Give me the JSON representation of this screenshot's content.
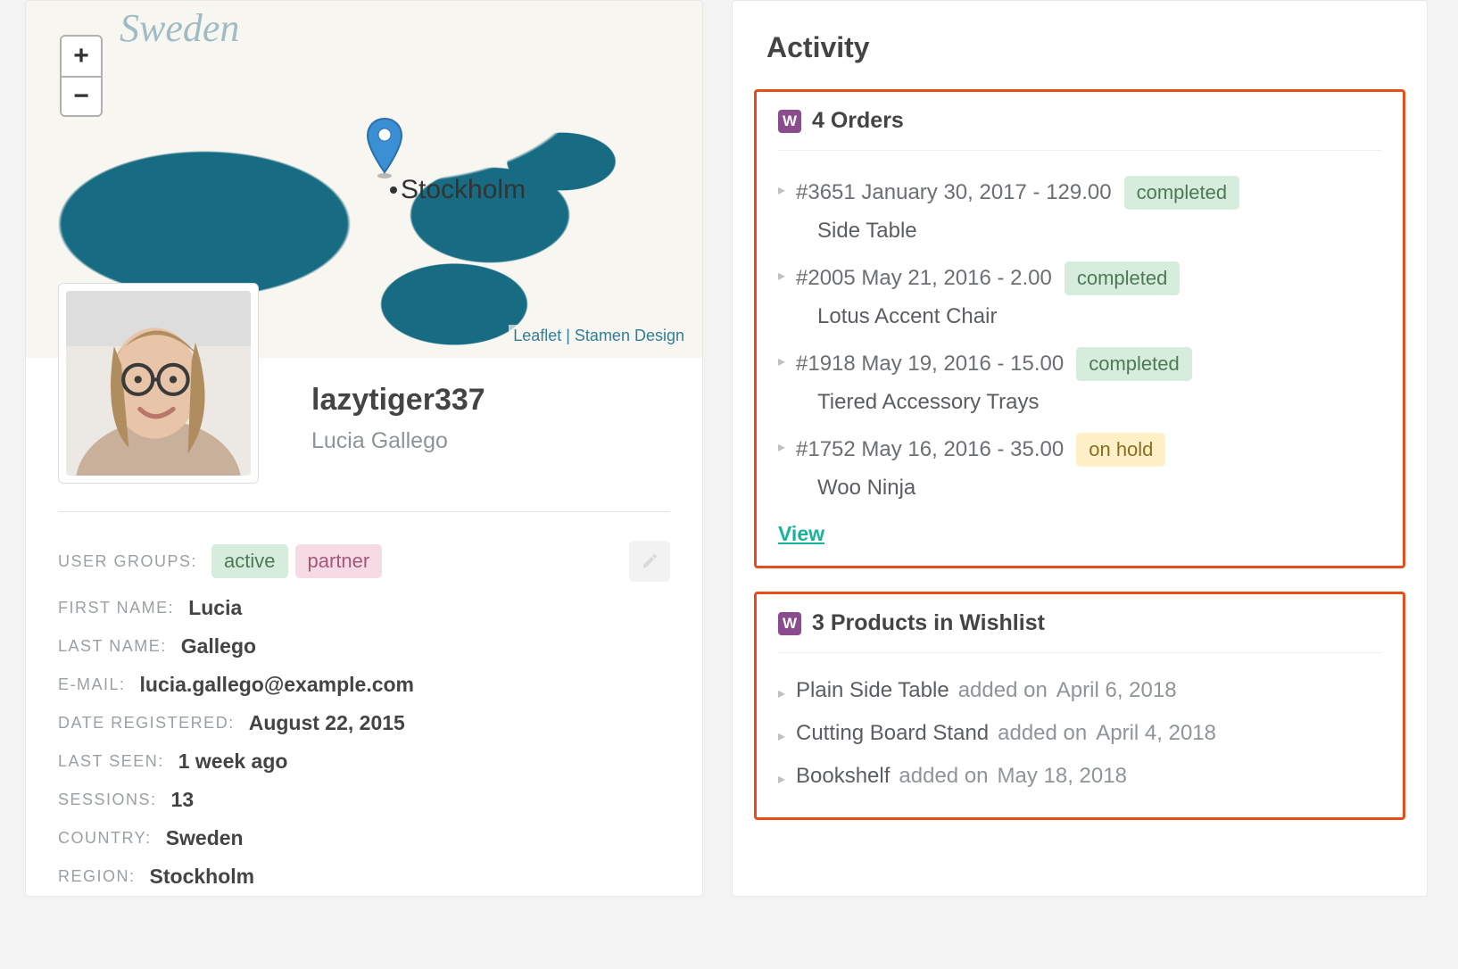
{
  "colors": {
    "background": "#f3f3f3",
    "card_bg": "#ffffff",
    "border": "#e8e8e8",
    "highlight_border": "#e84c1a",
    "teal": "#18b39b",
    "badge_green_bg": "#d6ecdc",
    "badge_green_text": "#4d7a55",
    "badge_pink_bg": "#f6dbe4",
    "badge_pink_text": "#a3587a",
    "badge_yellow_bg": "#fff0c8",
    "badge_yellow_text": "#8a6d1f",
    "w_icon_bg": "#8a4b8f",
    "map_water": "#176b82",
    "map_land": "#f8f6f0",
    "label_muted": "#9aa0a4",
    "text_primary": "#444444",
    "text_secondary": "#6b6f73"
  },
  "map": {
    "country_label": "Sweden",
    "city_label": "Stockholm",
    "attribution_leaflet": "Leaflet",
    "attribution_sep": " | ",
    "attribution_stamen": "Stamen Design",
    "zoom_in": "+",
    "zoom_out": "−"
  },
  "profile": {
    "username": "lazytiger337",
    "full_name": "Lucia Gallego",
    "labels": {
      "user_groups": "USER GROUPS:",
      "first_name": "FIRST NAME:",
      "last_name": "LAST NAME:",
      "email": "E-MAIL:",
      "date_registered": "DATE REGISTERED:",
      "last_seen": "LAST SEEN:",
      "sessions": "SESSIONS:",
      "country": "COUNTRY:",
      "region": "REGION:"
    },
    "badges": [
      "active",
      "partner"
    ],
    "first_name": "Lucia",
    "last_name": "Gallego",
    "email": "lucia.gallego@example.com",
    "date_registered": "August 22, 2015",
    "last_seen": "1 week ago",
    "sessions": "13",
    "country": "Sweden",
    "region": "Stockholm"
  },
  "activity": {
    "title": "Activity",
    "orders_section_title": "4 Orders",
    "wishlist_section_title": "3 Products in Wishlist",
    "view_label": "View",
    "orders": [
      {
        "summary": "#3651 January 30, 2017 - 129.00",
        "status": "completed",
        "status_color": "green",
        "product": "Side Table"
      },
      {
        "summary": "#2005 May 21, 2016 - 2.00",
        "status": "completed",
        "status_color": "green",
        "product": "Lotus Accent Chair"
      },
      {
        "summary": "#1918 May 19, 2016 - 15.00",
        "status": "completed",
        "status_color": "green",
        "product": "Tiered Accessory Trays"
      },
      {
        "summary": "#1752 May 16, 2016 - 35.00",
        "status": "on hold",
        "status_color": "yellow",
        "product": "Woo Ninja"
      }
    ],
    "wishlist": [
      {
        "product": "Plain Side Table",
        "joiner": " added on ",
        "date": "April 6, 2018"
      },
      {
        "product": "Cutting Board Stand",
        "joiner": " added on ",
        "date": "April 4, 2018"
      },
      {
        "product": "Bookshelf",
        "joiner": " added on ",
        "date": "May 18, 2018"
      }
    ]
  }
}
